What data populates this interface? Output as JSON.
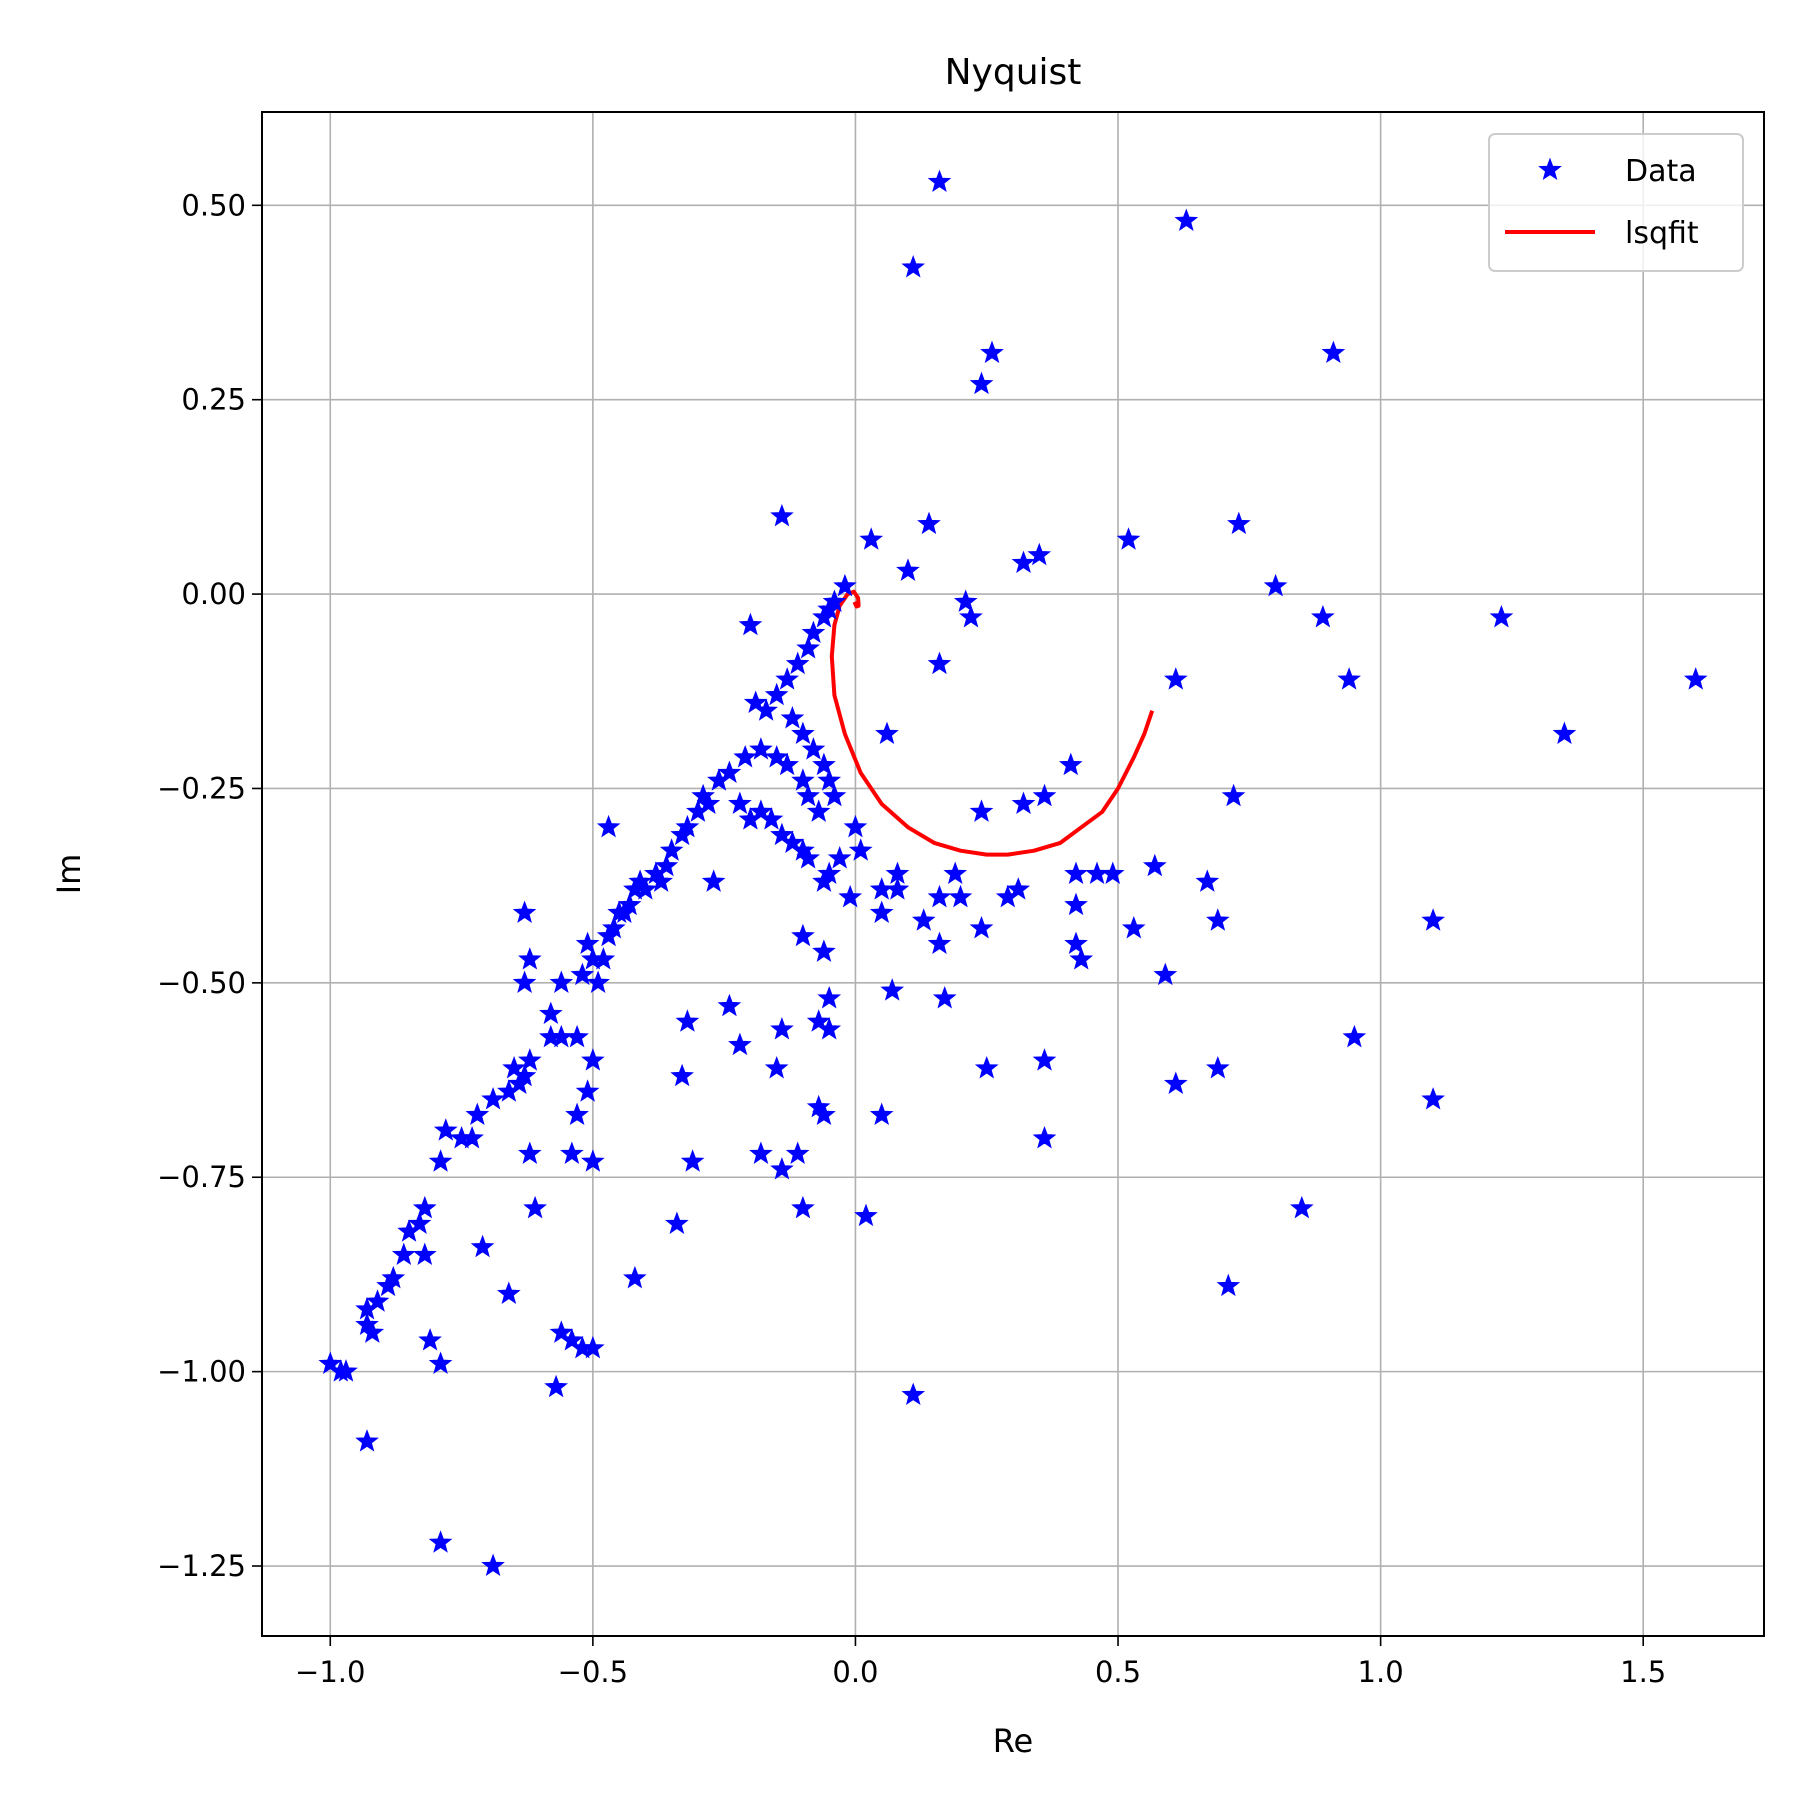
{
  "chart_data": {
    "type": "scatter",
    "title": "Nyquist",
    "xlabel": "Re",
    "ylabel": "Im",
    "xlim": [
      -1.13,
      1.73
    ],
    "ylim": [
      -1.34,
      0.62
    ],
    "grid": true,
    "legend_position": "top-right",
    "x_ticks": [
      -1.0,
      -0.5,
      0.0,
      0.5,
      1.0,
      1.5
    ],
    "x_tick_labels": [
      "−1.0",
      "−0.5",
      "0.0",
      "0.5",
      "1.0",
      "1.5"
    ],
    "y_ticks": [
      0.5,
      0.25,
      0.0,
      -0.25,
      -0.5,
      -0.75,
      -1.0,
      -1.25
    ],
    "y_tick_labels": [
      "0.50",
      "0.25",
      "0.00",
      "−0.25",
      "−0.50",
      "−0.75",
      "−1.00",
      "−1.25"
    ],
    "colors": {
      "data": "#0000ff",
      "fit": "#ff0000",
      "grid": "#b0b0b0"
    },
    "series": [
      {
        "name": "Data",
        "kind": "scatter",
        "marker": "star",
        "points": [
          [
            0.16,
            0.53
          ],
          [
            0.63,
            0.48
          ],
          [
            0.11,
            0.42
          ],
          [
            0.91,
            0.31
          ],
          [
            0.26,
            0.31
          ],
          [
            0.24,
            0.27
          ],
          [
            -0.14,
            0.1
          ],
          [
            0.14,
            0.09
          ],
          [
            0.73,
            0.09
          ],
          [
            0.03,
            0.07
          ],
          [
            0.52,
            0.07
          ],
          [
            0.35,
            0.05
          ],
          [
            0.32,
            0.04
          ],
          [
            0.1,
            0.03
          ],
          [
            0.8,
            0.01
          ],
          [
            -0.02,
            0.01
          ],
          [
            0.21,
            -0.01
          ],
          [
            0.22,
            -0.03
          ],
          [
            0.89,
            -0.03
          ],
          [
            1.23,
            -0.03
          ],
          [
            -0.2,
            -0.04
          ],
          [
            0.16,
            -0.09
          ],
          [
            0.61,
            -0.11
          ],
          [
            0.94,
            -0.11
          ],
          [
            1.6,
            -0.11
          ],
          [
            1.35,
            -0.18
          ],
          [
            0.06,
            -0.18
          ],
          [
            0.41,
            -0.22
          ],
          [
            0.72,
            -0.26
          ],
          [
            0.36,
            -0.26
          ],
          [
            0.32,
            -0.27
          ],
          [
            0.24,
            -0.28
          ],
          [
            -0.47,
            -0.3
          ],
          [
            0.0,
            -0.3
          ],
          [
            0.01,
            -0.33
          ],
          [
            -0.03,
            -0.34
          ],
          [
            -0.05,
            -0.36
          ],
          [
            0.08,
            -0.36
          ],
          [
            0.19,
            -0.36
          ],
          [
            0.57,
            -0.35
          ],
          [
            0.46,
            -0.36
          ],
          [
            0.49,
            -0.36
          ],
          [
            0.42,
            -0.36
          ],
          [
            -0.27,
            -0.37
          ],
          [
            -0.06,
            -0.37
          ],
          [
            0.05,
            -0.38
          ],
          [
            0.08,
            -0.38
          ],
          [
            0.31,
            -0.38
          ],
          [
            0.29,
            -0.39
          ],
          [
            0.16,
            -0.39
          ],
          [
            0.2,
            -0.39
          ],
          [
            -0.01,
            -0.39
          ],
          [
            0.67,
            -0.37
          ],
          [
            0.42,
            -0.4
          ],
          [
            0.05,
            -0.41
          ],
          [
            -0.63,
            -0.41
          ],
          [
            0.13,
            -0.42
          ],
          [
            0.69,
            -0.42
          ],
          [
            0.24,
            -0.43
          ],
          [
            1.1,
            -0.42
          ],
          [
            0.53,
            -0.43
          ],
          [
            0.42,
            -0.45
          ],
          [
            -0.1,
            -0.44
          ],
          [
            0.16,
            -0.45
          ],
          [
            -0.06,
            -0.46
          ],
          [
            0.43,
            -0.47
          ],
          [
            -0.62,
            -0.47
          ],
          [
            0.59,
            -0.49
          ],
          [
            -0.63,
            -0.5
          ],
          [
            0.07,
            -0.51
          ],
          [
            -0.05,
            -0.52
          ],
          [
            0.17,
            -0.52
          ],
          [
            -0.07,
            -0.55
          ],
          [
            -0.32,
            -0.55
          ],
          [
            -0.24,
            -0.53
          ],
          [
            -0.05,
            -0.56
          ],
          [
            -0.14,
            -0.56
          ],
          [
            -0.22,
            -0.58
          ],
          [
            0.95,
            -0.57
          ],
          [
            0.36,
            -0.6
          ],
          [
            0.25,
            -0.61
          ],
          [
            0.69,
            -0.61
          ],
          [
            -0.15,
            -0.61
          ],
          [
            -0.33,
            -0.62
          ],
          [
            0.61,
            -0.63
          ],
          [
            -0.07,
            -0.66
          ],
          [
            -0.06,
            -0.67
          ],
          [
            0.05,
            -0.67
          ],
          [
            1.1,
            -0.65
          ],
          [
            -0.53,
            -0.67
          ],
          [
            0.36,
            -0.7
          ],
          [
            -0.62,
            -0.72
          ],
          [
            -0.18,
            -0.72
          ],
          [
            -0.11,
            -0.72
          ],
          [
            -0.54,
            -0.72
          ],
          [
            -0.5,
            -0.73
          ],
          [
            -0.31,
            -0.73
          ],
          [
            -0.14,
            -0.74
          ],
          [
            -0.79,
            -0.73
          ],
          [
            -0.1,
            -0.79
          ],
          [
            -0.61,
            -0.79
          ],
          [
            0.02,
            -0.8
          ],
          [
            -0.34,
            -0.81
          ],
          [
            0.85,
            -0.79
          ],
          [
            -0.71,
            -0.84
          ],
          [
            -0.82,
            -0.85
          ],
          [
            -0.42,
            -0.88
          ],
          [
            0.71,
            -0.89
          ],
          [
            -0.66,
            -0.9
          ],
          [
            -0.56,
            -0.95
          ],
          [
            -0.81,
            -0.96
          ],
          [
            -0.54,
            -0.96
          ],
          [
            -0.52,
            -0.97
          ],
          [
            -0.5,
            -0.97
          ],
          [
            -0.79,
            -0.99
          ],
          [
            -1.0,
            -0.99
          ],
          [
            -0.98,
            -1.0
          ],
          [
            -0.97,
            -1.0
          ],
          [
            -0.57,
            -1.02
          ],
          [
            0.11,
            -1.03
          ],
          [
            -0.93,
            -1.09
          ],
          [
            -0.79,
            -1.22
          ],
          [
            -0.69,
            -1.25
          ],
          [
            -0.56,
            -0.5
          ],
          [
            -0.52,
            -0.49
          ],
          [
            -0.58,
            -0.54
          ],
          [
            -0.58,
            -0.57
          ],
          [
            -0.56,
            -0.57
          ],
          [
            -0.53,
            -0.57
          ],
          [
            -0.5,
            -0.6
          ],
          [
            -0.62,
            -0.6
          ],
          [
            -0.63,
            -0.62
          ],
          [
            -0.65,
            -0.61
          ],
          [
            -0.64,
            -0.63
          ],
          [
            -0.66,
            -0.64
          ],
          [
            -0.69,
            -0.65
          ],
          [
            -0.72,
            -0.67
          ],
          [
            -0.73,
            -0.7
          ],
          [
            -0.78,
            -0.69
          ],
          [
            -0.75,
            -0.7
          ],
          [
            -0.82,
            -0.79
          ],
          [
            -0.83,
            -0.81
          ],
          [
            -0.85,
            -0.82
          ],
          [
            -0.86,
            -0.85
          ],
          [
            -0.88,
            -0.88
          ],
          [
            -0.89,
            -0.89
          ],
          [
            -0.91,
            -0.91
          ],
          [
            -0.93,
            -0.94
          ],
          [
            -0.92,
            -0.95
          ],
          [
            -0.93,
            -0.92
          ],
          [
            -0.51,
            -0.64
          ],
          [
            -0.51,
            -0.45
          ],
          [
            -0.5,
            -0.47
          ],
          [
            -0.49,
            -0.5
          ],
          [
            -0.47,
            -0.44
          ],
          [
            -0.45,
            -0.41
          ],
          [
            -0.43,
            -0.4
          ],
          [
            -0.42,
            -0.38
          ],
          [
            -0.41,
            -0.37
          ],
          [
            -0.38,
            -0.36
          ],
          [
            -0.36,
            -0.35
          ],
          [
            -0.35,
            -0.33
          ],
          [
            -0.33,
            -0.31
          ],
          [
            -0.32,
            -0.3
          ],
          [
            -0.3,
            -0.28
          ],
          [
            -0.29,
            -0.26
          ],
          [
            -0.28,
            -0.27
          ],
          [
            -0.26,
            -0.24
          ],
          [
            -0.24,
            -0.23
          ],
          [
            -0.22,
            -0.27
          ],
          [
            -0.2,
            -0.29
          ],
          [
            -0.18,
            -0.28
          ],
          [
            -0.16,
            -0.29
          ],
          [
            -0.14,
            -0.31
          ],
          [
            -0.12,
            -0.32
          ],
          [
            -0.1,
            -0.33
          ],
          [
            -0.09,
            -0.34
          ],
          [
            -0.21,
            -0.21
          ],
          [
            -0.18,
            -0.2
          ],
          [
            -0.15,
            -0.21
          ],
          [
            -0.13,
            -0.22
          ],
          [
            -0.19,
            -0.14
          ],
          [
            -0.17,
            -0.15
          ],
          [
            -0.15,
            -0.13
          ],
          [
            -0.13,
            -0.11
          ],
          [
            -0.11,
            -0.09
          ],
          [
            -0.09,
            -0.07
          ],
          [
            -0.08,
            -0.05
          ],
          [
            -0.06,
            -0.03
          ],
          [
            -0.05,
            -0.02
          ],
          [
            -0.04,
            -0.01
          ],
          [
            -0.12,
            -0.16
          ],
          [
            -0.1,
            -0.18
          ],
          [
            -0.08,
            -0.2
          ],
          [
            -0.06,
            -0.22
          ],
          [
            -0.05,
            -0.24
          ],
          [
            -0.04,
            -0.26
          ],
          [
            -0.07,
            -0.28
          ],
          [
            -0.09,
            -0.26
          ],
          [
            -0.1,
            -0.24
          ],
          [
            -0.44,
            -0.41
          ],
          [
            -0.46,
            -0.43
          ],
          [
            -0.48,
            -0.47
          ],
          [
            -0.37,
            -0.37
          ],
          [
            -0.4,
            -0.38
          ]
        ]
      },
      {
        "name": "lsqfit",
        "kind": "line",
        "points": [
          [
            0.565,
            -0.15
          ],
          [
            0.55,
            -0.18
          ],
          [
            0.53,
            -0.21
          ],
          [
            0.5,
            -0.25
          ],
          [
            0.47,
            -0.28
          ],
          [
            0.43,
            -0.3
          ],
          [
            0.39,
            -0.32
          ],
          [
            0.34,
            -0.33
          ],
          [
            0.29,
            -0.335
          ],
          [
            0.25,
            -0.335
          ],
          [
            0.2,
            -0.33
          ],
          [
            0.15,
            -0.32
          ],
          [
            0.1,
            -0.3
          ],
          [
            0.05,
            -0.27
          ],
          [
            0.01,
            -0.23
          ],
          [
            -0.02,
            -0.18
          ],
          [
            -0.04,
            -0.13
          ],
          [
            -0.045,
            -0.08
          ],
          [
            -0.04,
            -0.04
          ],
          [
            -0.03,
            -0.015
          ],
          [
            -0.015,
            0.0
          ],
          [
            -0.003,
            0.003
          ],
          [
            0.005,
            -0.005
          ],
          [
            0.006,
            -0.015
          ],
          [
            0.002,
            -0.016
          ],
          [
            -0.002,
            -0.01
          ]
        ]
      }
    ]
  }
}
